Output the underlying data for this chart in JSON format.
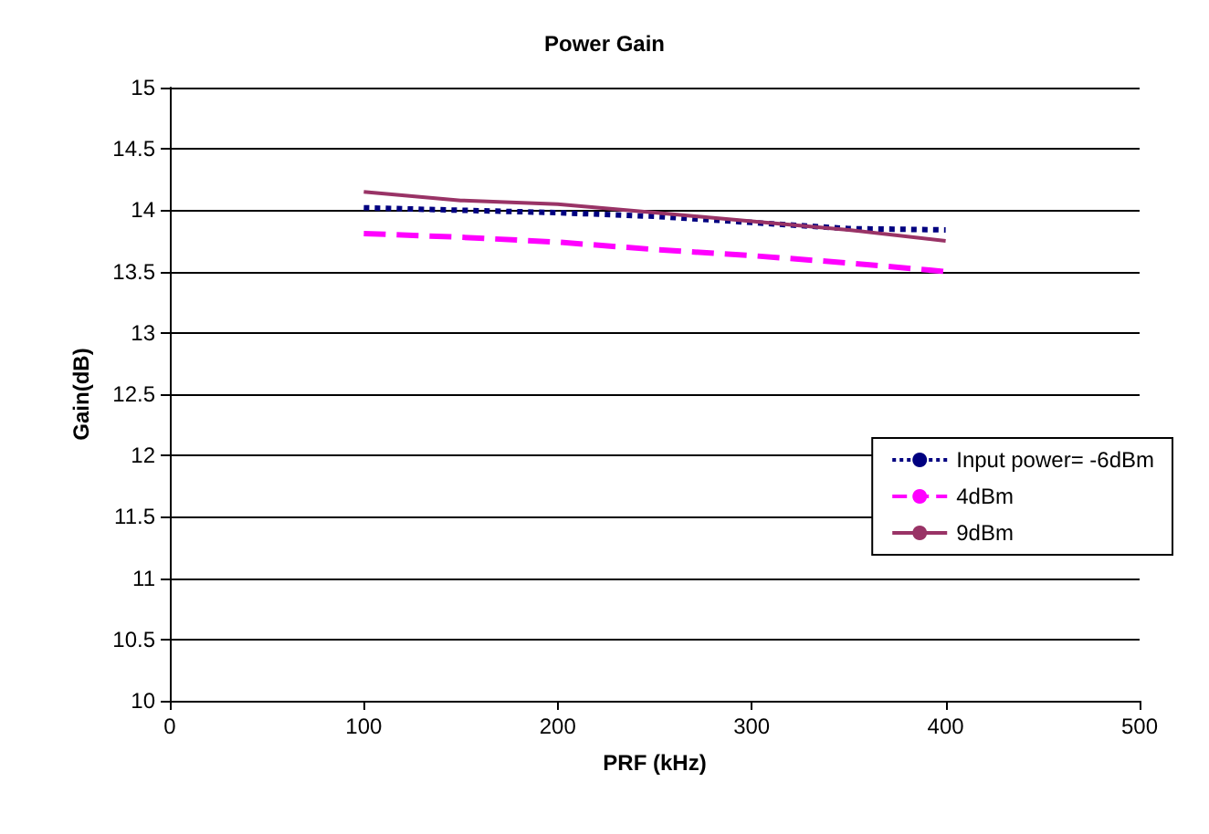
{
  "chart_data": {
    "type": "line",
    "title": "Power Gain",
    "xlabel": "PRF (kHz)",
    "ylabel": "Gain(dB)",
    "x": [
      100,
      150,
      200,
      250,
      300,
      350,
      400
    ],
    "series": [
      {
        "name": "Input power= -6dBm",
        "color": "#000080",
        "line_style": "dotted",
        "values": [
          14.02,
          14.0,
          13.98,
          13.95,
          13.9,
          13.85,
          13.84
        ]
      },
      {
        "name": "4dBm",
        "color": "#ff00ff",
        "line_style": "dashed",
        "values": [
          13.81,
          13.78,
          13.74,
          13.68,
          13.63,
          13.57,
          13.5
        ]
      },
      {
        "name": "9dBm",
        "color": "#993366",
        "line_style": "solid",
        "values": [
          14.15,
          14.08,
          14.05,
          13.98,
          13.91,
          13.84,
          13.75
        ]
      }
    ],
    "xlim": [
      0,
      500
    ],
    "xticks": [
      0,
      100,
      200,
      300,
      400,
      500
    ],
    "ylim": [
      10,
      15
    ],
    "yticks": [
      10,
      10.5,
      11,
      11.5,
      12,
      12.5,
      13,
      13.5,
      14,
      14.5,
      15
    ],
    "grid": "y",
    "legend": "right",
    "marker": "none"
  }
}
